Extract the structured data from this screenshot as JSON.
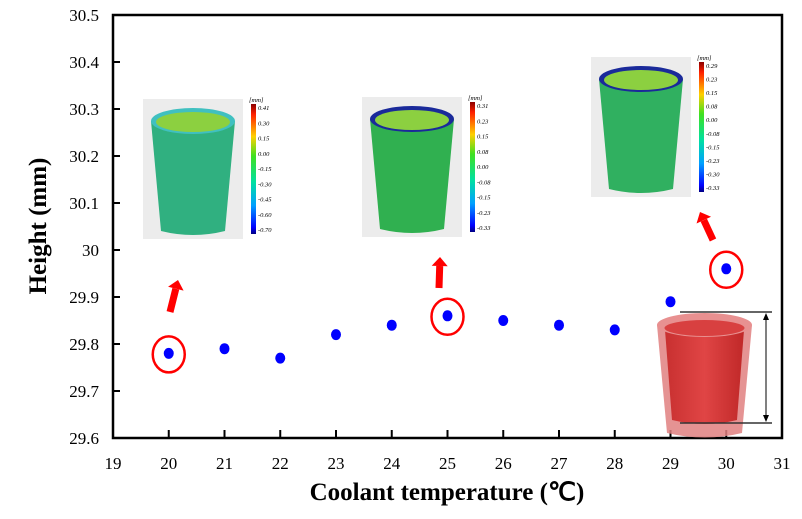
{
  "chart_data": {
    "type": "scatter",
    "title": "",
    "xlabel": "Coolant temperature (℃)",
    "ylabel": "Height (mm)",
    "xlim": [
      19,
      31
    ],
    "ylim": [
      29.6,
      30.5
    ],
    "xticks": [
      "19",
      "20",
      "21",
      "22",
      "23",
      "24",
      "25",
      "26",
      "27",
      "28",
      "29",
      "30",
      "31"
    ],
    "yticks": [
      "29.6",
      "29.7",
      "29.8",
      "29.9",
      "30",
      "30.1",
      "30.2",
      "30.3",
      "30.4",
      "30.5"
    ],
    "grid": false,
    "series": [
      {
        "name": "Height",
        "color": "#0000ff",
        "x": [
          20,
          21,
          22,
          23,
          24,
          25,
          26,
          27,
          28,
          29,
          30
        ],
        "y": [
          29.78,
          29.79,
          29.77,
          29.82,
          29.84,
          29.86,
          29.85,
          29.84,
          29.83,
          29.89,
          29.96
        ]
      }
    ],
    "highlighted_x": [
      20,
      25,
      30
    ],
    "highlight_color": "#ff0000",
    "insets": [
      {
        "unit": "[mm]",
        "scale": [
          "0.41",
          "0.30",
          "0.15",
          "0.00",
          "-0.15",
          "-0.30",
          "-0.45",
          "-0.60",
          "-0.70"
        ]
      },
      {
        "unit": "[mm]",
        "scale": [
          "0.31",
          "0.23",
          "0.15",
          "0.08",
          "0.00",
          "-0.08",
          "-0.15",
          "-0.23",
          "-0.33"
        ]
      },
      {
        "unit": "[mm]",
        "scale": [
          "0.29",
          "0.23",
          "0.15",
          "0.08",
          "0.00",
          "-0.08",
          "-0.15",
          "-0.23",
          "-0.30",
          "-0.33"
        ]
      }
    ]
  }
}
